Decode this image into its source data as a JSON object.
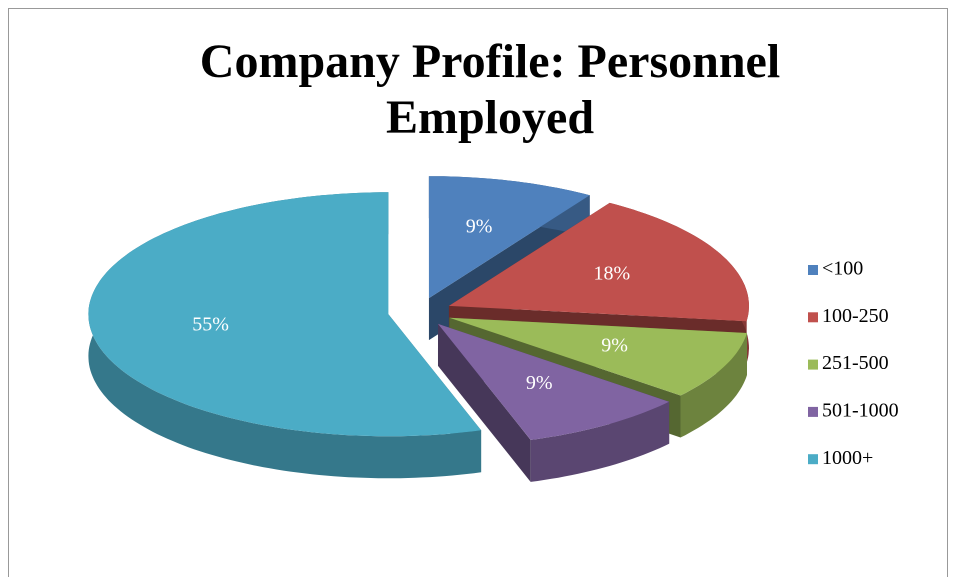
{
  "chart_data": {
    "type": "pie",
    "title": "Company Profile:  Personnel Employed",
    "categories": [
      "<100",
      "100-250",
      "251-500",
      "501-1000",
      "1000+"
    ],
    "values": [
      9,
      18,
      9,
      9,
      55
    ],
    "value_labels": [
      "9%",
      "18%",
      "9%",
      "9%",
      "55%"
    ],
    "colors": [
      "#4f81bd",
      "#c0504d",
      "#9bbb59",
      "#8064a2",
      "#4bacc6"
    ],
    "legend": "right"
  }
}
